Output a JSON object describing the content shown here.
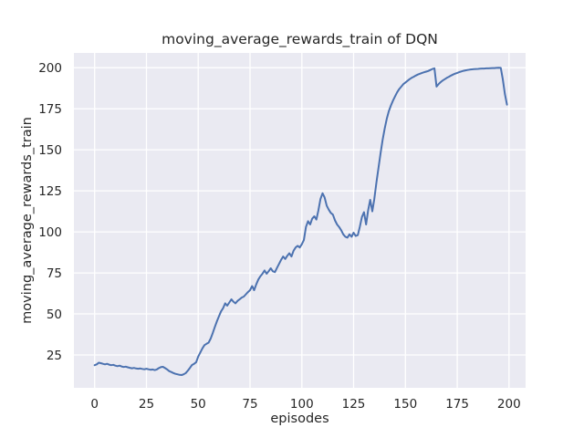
{
  "chart_data": {
    "type": "line",
    "title": "moving_average_rewards_train of DQN",
    "xlabel": "episodes",
    "ylabel": "moving_average_rewards_train",
    "x_ticks": [
      0,
      25,
      50,
      75,
      100,
      125,
      150,
      175,
      200
    ],
    "y_ticks": [
      25,
      50,
      75,
      100,
      125,
      150,
      175,
      200
    ],
    "xlim": [
      -10,
      208
    ],
    "ylim": [
      5,
      209
    ],
    "grid": true,
    "legend": "none",
    "style": {
      "figure_bg": "#ffffff",
      "axes_bg": "#eaeaf2",
      "grid_color": "#ffffff",
      "line_color": "#4c72b0",
      "text_color": "#262626"
    },
    "series": [
      {
        "name": "moving_average_rewards_train",
        "x_start": 0,
        "x_step": 1,
        "y": [
          18.8,
          19.3,
          20.3,
          20.0,
          19.6,
          19.3,
          19.6,
          19.1,
          18.8,
          19.0,
          18.5,
          18.2,
          18.5,
          18.0,
          17.7,
          17.9,
          17.5,
          17.2,
          16.9,
          17.1,
          16.8,
          16.6,
          16.8,
          16.5,
          16.3,
          16.6,
          16.3,
          16.0,
          16.2,
          15.8,
          16.2,
          17.0,
          17.6,
          17.8,
          17.0,
          16.2,
          15.2,
          14.6,
          14.0,
          13.5,
          13.2,
          12.9,
          12.8,
          13.2,
          14.0,
          15.5,
          17.2,
          18.9,
          19.6,
          20.6,
          24.0,
          26.5,
          29.0,
          31.0,
          31.8,
          32.5,
          35.0,
          38.3,
          42.0,
          45.5,
          48.5,
          51.5,
          53.5,
          56.5,
          55.0,
          57.0,
          58.9,
          57.5,
          56.5,
          58.0,
          59.0,
          60.0,
          60.6,
          62.0,
          63.3,
          64.5,
          67.0,
          64.5,
          68.0,
          71.0,
          73.0,
          74.5,
          76.5,
          74.5,
          76.0,
          77.8,
          76.0,
          75.5,
          78.0,
          80.5,
          83.0,
          85.0,
          83.5,
          85.5,
          87.0,
          85.0,
          88.5,
          90.5,
          91.5,
          90.5,
          92.5,
          95.0,
          103.0,
          106.5,
          104.5,
          108.0,
          109.5,
          107.5,
          113.0,
          120.0,
          123.5,
          121.0,
          116.0,
          113.5,
          111.5,
          110.5,
          107.0,
          104.5,
          103.0,
          101.0,
          98.5,
          97.0,
          96.5,
          98.5,
          97.0,
          99.5,
          97.5,
          98.0,
          103.0,
          109.0,
          112.0,
          104.5,
          113.0,
          119.5,
          112.5,
          120.0,
          130.0,
          139.0,
          148.0,
          156.0,
          163.0,
          169.0,
          173.5,
          177.0,
          180.0,
          182.5,
          185.0,
          187.0,
          188.5,
          190.0,
          191.0,
          192.0,
          193.0,
          193.8,
          194.5,
          195.2,
          195.8,
          196.3,
          196.8,
          197.2,
          197.6,
          198.0,
          198.6,
          199.2,
          199.6,
          188.5,
          190.0,
          191.2,
          192.2,
          193.0,
          193.8,
          194.5,
          195.2,
          195.8,
          196.4,
          196.8,
          197.3,
          197.7,
          198.1,
          198.4,
          198.6,
          198.8,
          199.0,
          199.1,
          199.2,
          199.3,
          199.4,
          199.5,
          199.5,
          199.6,
          199.6,
          199.7,
          199.8,
          199.8,
          199.9,
          200.0,
          199.9,
          193.0,
          184.0,
          177.5
        ]
      }
    ]
  }
}
